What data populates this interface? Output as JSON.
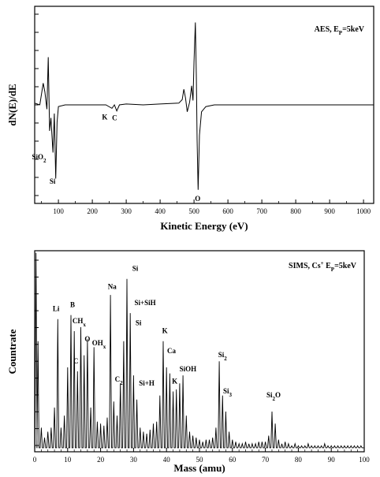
{
  "chart_data": [
    {
      "type": "line",
      "title": "AES, E",
      "title_sub": "P",
      "title_suffix": "=5keV",
      "xlabel": "Kinetic Energy (eV)",
      "ylabel": "dN(E)/dE",
      "xlim": [
        30,
        1030
      ],
      "ylim": [
        -1,
        1
      ],
      "xticks": [
        100,
        200,
        300,
        400,
        500,
        600,
        700,
        800,
        900,
        1000
      ],
      "yticks_count": 11,
      "legend": "top-right",
      "series": [
        {
          "points": [
            [
              30,
              0.02
            ],
            [
              45,
              0.0
            ],
            [
              55,
              0.25
            ],
            [
              60,
              0.15
            ],
            [
              66,
              -0.05
            ],
            [
              70,
              0.55
            ],
            [
              74,
              -0.3
            ],
            [
              78,
              -0.15
            ],
            [
              84,
              -0.55
            ],
            [
              88,
              -0.1
            ],
            [
              92,
              -0.85
            ],
            [
              96,
              -0.2
            ],
            [
              100,
              -0.02
            ],
            [
              120,
              0.0
            ],
            [
              150,
              0.0
            ],
            [
              200,
              0.0
            ],
            [
              240,
              0.0
            ],
            [
              258,
              -0.04
            ],
            [
              265,
              0.0
            ],
            [
              272,
              -0.07
            ],
            [
              280,
              0.0
            ],
            [
              300,
              0.01
            ],
            [
              350,
              0.0
            ],
            [
              400,
              0.01
            ],
            [
              455,
              0.02
            ],
            [
              465,
              0.06
            ],
            [
              470,
              0.18
            ],
            [
              475,
              0.08
            ],
            [
              480,
              -0.08
            ],
            [
              487,
              0.03
            ],
            [
              493,
              0.22
            ],
            [
              497,
              0.05
            ],
            [
              500,
              0.5
            ],
            [
              504,
              0.95
            ],
            [
              507,
              0.3
            ],
            [
              509,
              -0.4
            ],
            [
              512,
              -0.98
            ],
            [
              516,
              -0.35
            ],
            [
              522,
              -0.08
            ],
            [
              535,
              -0.02
            ],
            [
              560,
              0.0
            ],
            [
              600,
              0.0
            ],
            [
              700,
              0.0
            ],
            [
              800,
              0.0
            ],
            [
              900,
              0.0
            ],
            [
              1000,
              0.0
            ],
            [
              1030,
              0.0
            ]
          ]
        }
      ],
      "annotations": [
        {
          "text": "SiO",
          "sub": "2",
          "x": 52,
          "y": -0.52
        },
        {
          "text": "Si",
          "sub": "",
          "x": 92,
          "y": -0.8
        },
        {
          "text": "K",
          "sub": "",
          "x": 246,
          "y": -0.06
        },
        {
          "text": "C",
          "sub": "",
          "x": 275,
          "y": -0.07
        },
        {
          "text": "O",
          "sub": "",
          "x": 520,
          "y": -1.0
        }
      ]
    },
    {
      "type": "line",
      "title": "SIMS, Cs",
      "title_sup": "+",
      "title_suffix": " E",
      "title_sub": "P",
      "title_suffix2": "=5keV",
      "xlabel": "Mass (amu)",
      "ylabel": "Countrate",
      "xlim": [
        0,
        100
      ],
      "ylim": [
        0,
        1
      ],
      "xticks": [
        0,
        10,
        20,
        30,
        40,
        50,
        60,
        70,
        80,
        90,
        100
      ],
      "yticks_count": 12,
      "legend": "top-right",
      "peaks": [
        [
          0.4,
          0.99
        ],
        [
          1,
          0.55
        ],
        [
          2,
          0.12
        ],
        [
          3,
          0.07
        ],
        [
          4,
          0.1
        ],
        [
          5,
          0.12
        ],
        [
          6,
          0.22
        ],
        [
          7,
          0.66
        ],
        [
          8,
          0.12
        ],
        [
          9,
          0.18
        ],
        [
          10,
          0.42
        ],
        [
          11,
          0.68
        ],
        [
          12,
          0.6
        ],
        [
          13,
          0.4
        ],
        [
          14,
          0.62
        ],
        [
          15,
          0.48
        ],
        [
          16,
          0.56
        ],
        [
          17,
          0.22
        ],
        [
          18,
          0.52
        ],
        [
          19,
          0.15
        ],
        [
          20,
          0.14
        ],
        [
          21,
          0.13
        ],
        [
          22,
          0.17
        ],
        [
          23,
          0.78
        ],
        [
          24,
          0.25
        ],
        [
          25,
          0.18
        ],
        [
          26,
          0.34
        ],
        [
          27,
          0.55
        ],
        [
          28,
          0.86
        ],
        [
          29,
          0.69
        ],
        [
          30,
          0.38
        ],
        [
          31,
          0.26
        ],
        [
          32,
          0.12
        ],
        [
          33,
          0.1
        ],
        [
          34,
          0.09
        ],
        [
          35,
          0.11
        ],
        [
          36,
          0.14
        ],
        [
          37,
          0.15
        ],
        [
          38,
          0.28
        ],
        [
          39,
          0.55
        ],
        [
          40,
          0.42
        ],
        [
          41,
          0.39
        ],
        [
          42,
          0.3
        ],
        [
          43,
          0.31
        ],
        [
          44,
          0.34
        ],
        [
          45,
          0.38
        ],
        [
          46,
          0.18
        ],
        [
          47,
          0.1
        ],
        [
          48,
          0.08
        ],
        [
          49,
          0.07
        ],
        [
          50,
          0.06
        ],
        [
          51,
          0.05
        ],
        [
          52,
          0.06
        ],
        [
          53,
          0.06
        ],
        [
          54,
          0.07
        ],
        [
          55,
          0.12
        ],
        [
          56,
          0.45
        ],
        [
          57,
          0.28
        ],
        [
          58,
          0.2
        ],
        [
          59,
          0.1
        ],
        [
          60,
          0.06
        ],
        [
          61,
          0.05
        ],
        [
          62,
          0.04
        ],
        [
          63,
          0.04
        ],
        [
          64,
          0.05
        ],
        [
          65,
          0.04
        ],
        [
          66,
          0.04
        ],
        [
          67,
          0.04
        ],
        [
          68,
          0.05
        ],
        [
          69,
          0.05
        ],
        [
          70,
          0.05
        ],
        [
          71,
          0.08
        ],
        [
          72,
          0.2
        ],
        [
          73,
          0.14
        ],
        [
          74,
          0.06
        ],
        [
          75,
          0.04
        ],
        [
          76,
          0.05
        ],
        [
          77,
          0.04
        ],
        [
          78,
          0.03
        ],
        [
          79,
          0.04
        ],
        [
          80,
          0.03
        ],
        [
          81,
          0.03
        ],
        [
          82,
          0.03
        ],
        [
          83,
          0.04
        ],
        [
          84,
          0.03
        ],
        [
          85,
          0.03
        ],
        [
          86,
          0.03
        ],
        [
          87,
          0.03
        ],
        [
          88,
          0.04
        ],
        [
          89,
          0.03
        ],
        [
          90,
          0.03
        ],
        [
          91,
          0.03
        ],
        [
          92,
          0.03
        ],
        [
          93,
          0.03
        ],
        [
          94,
          0.03
        ],
        [
          95,
          0.03
        ],
        [
          96,
          0.03
        ],
        [
          97,
          0.03
        ],
        [
          98,
          0.03
        ],
        [
          99,
          0.03
        ]
      ],
      "annotations": [
        {
          "text": "Li",
          "sub": "",
          "x": 6.5,
          "y": 0.7
        },
        {
          "text": "B",
          "sub": "",
          "x": 11.5,
          "y": 0.72
        },
        {
          "text": "CH",
          "sub": "x",
          "x": 13.5,
          "y": 0.64
        },
        {
          "text": "C",
          "sub": "",
          "x": 12.5,
          "y": 0.44
        },
        {
          "text": "O",
          "sub": "",
          "x": 16,
          "y": 0.55
        },
        {
          "text": "OH",
          "sub": "x",
          "x": 19.5,
          "y": 0.53
        },
        {
          "text": "Na",
          "sub": "",
          "x": 23.5,
          "y": 0.81
        },
        {
          "text": "C",
          "sub": "2",
          "x": 25.5,
          "y": 0.35
        },
        {
          "text": "Si",
          "sub": "",
          "x": 30.5,
          "y": 0.9
        },
        {
          "text": "Si+SiH",
          "sub": "",
          "x": 33.5,
          "y": 0.73
        },
        {
          "text": "Si",
          "sub": "",
          "x": 31.5,
          "y": 0.63
        },
        {
          "text": "Si+H",
          "sub": "",
          "x": 34,
          "y": 0.33
        },
        {
          "text": "K",
          "sub": "",
          "x": 39.5,
          "y": 0.59
        },
        {
          "text": "Ca",
          "sub": "",
          "x": 41.5,
          "y": 0.49
        },
        {
          "text": "K",
          "sub": "",
          "x": 42.5,
          "y": 0.34
        },
        {
          "text": "SiOH",
          "sub": "",
          "x": 46.5,
          "y": 0.4
        },
        {
          "text": "Si",
          "sub": "2",
          "x": 57,
          "y": 0.47
        },
        {
          "text": "Si",
          "sub": "3",
          "x": 58.5,
          "y": 0.29
        },
        {
          "text": "Si",
          "sub": "2",
          "x2": "O",
          "x": 72.5,
          "y": 0.27
        }
      ]
    }
  ]
}
